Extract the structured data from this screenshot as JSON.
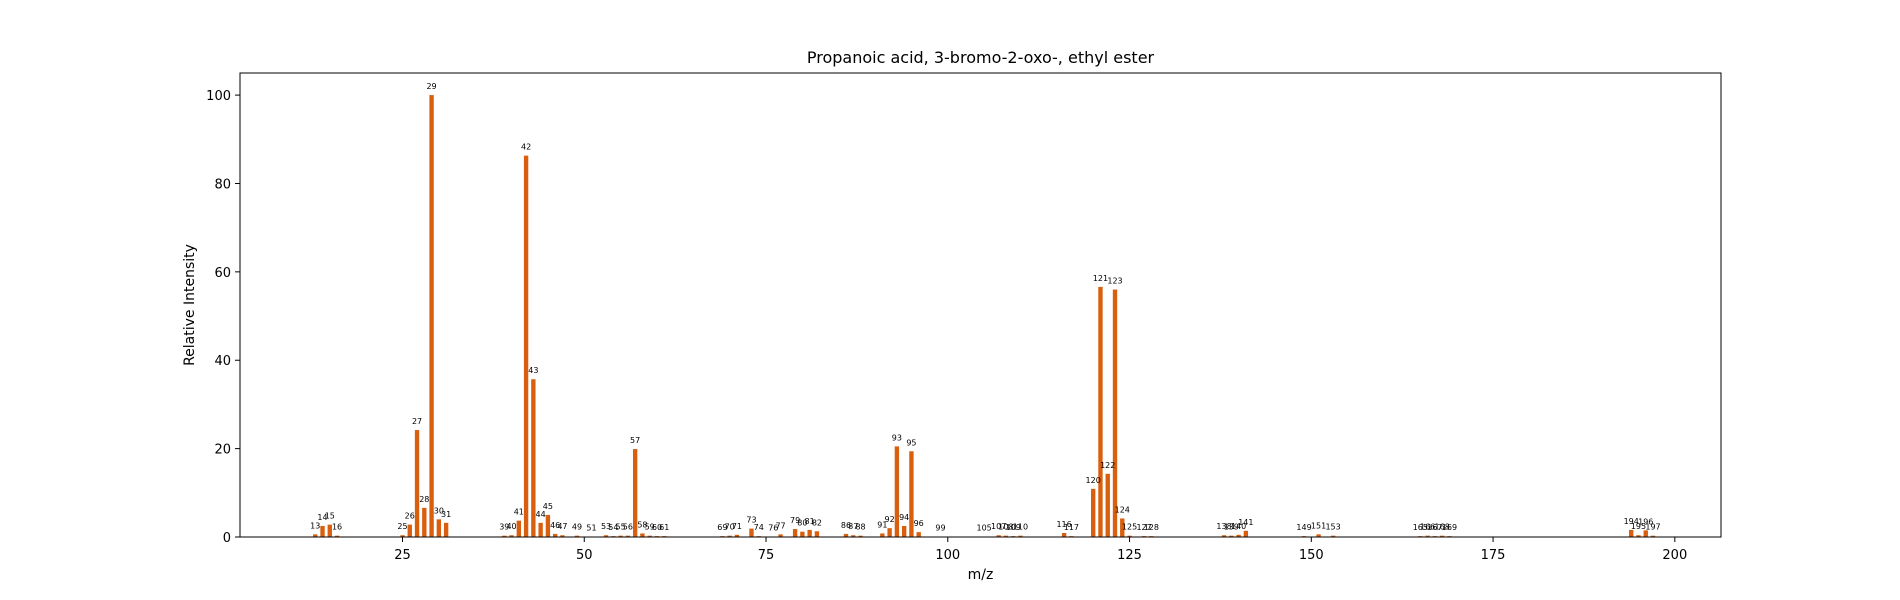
{
  "chart_data": {
    "type": "bar",
    "title": "Propanoic acid, 3-bromo-2-oxo-, ethyl ester",
    "xlabel": "m/z",
    "ylabel": "Relative Intensity",
    "xlim": [
      2.65,
      206.35
    ],
    "ylim": [
      0,
      105
    ],
    "xticks": [
      25,
      50,
      75,
      100,
      125,
      150,
      175,
      200
    ],
    "yticks": [
      0,
      20,
      40,
      60,
      80,
      100
    ],
    "grid": false,
    "bar_color": "#d95f0e",
    "points": [
      {
        "x": 13,
        "y": 0.6
      },
      {
        "x": 14,
        "y": 2.5
      },
      {
        "x": 15,
        "y": 2.8
      },
      {
        "x": 16,
        "y": 0.3
      },
      {
        "x": 25,
        "y": 0.4
      },
      {
        "x": 26,
        "y": 2.8
      },
      {
        "x": 27,
        "y": 24.2
      },
      {
        "x": 28,
        "y": 6.6
      },
      {
        "x": 29,
        "y": 100.0
      },
      {
        "x": 30,
        "y": 4.0
      },
      {
        "x": 31,
        "y": 3.2
      },
      {
        "x": 39,
        "y": 0.3
      },
      {
        "x": 40,
        "y": 0.4
      },
      {
        "x": 41,
        "y": 3.7
      },
      {
        "x": 42,
        "y": 86.3
      },
      {
        "x": 43,
        "y": 35.7
      },
      {
        "x": 44,
        "y": 3.2
      },
      {
        "x": 45,
        "y": 5.0
      },
      {
        "x": 46,
        "y": 0.7
      },
      {
        "x": 47,
        "y": 0.4
      },
      {
        "x": 49,
        "y": 0.3
      },
      {
        "x": 51,
        "y": 0.1
      },
      {
        "x": 53,
        "y": 0.4
      },
      {
        "x": 54,
        "y": 0.2
      },
      {
        "x": 55,
        "y": 0.3
      },
      {
        "x": 56,
        "y": 0.3
      },
      {
        "x": 57,
        "y": 19.9
      },
      {
        "x": 58,
        "y": 0.8
      },
      {
        "x": 59,
        "y": 0.3
      },
      {
        "x": 60,
        "y": 0.2
      },
      {
        "x": 61,
        "y": 0.2
      },
      {
        "x": 69,
        "y": 0.2
      },
      {
        "x": 70,
        "y": 0.3
      },
      {
        "x": 71,
        "y": 0.5
      },
      {
        "x": 73,
        "y": 1.9
      },
      {
        "x": 74,
        "y": 0.2
      },
      {
        "x": 76,
        "y": 0.1
      },
      {
        "x": 77,
        "y": 0.6
      },
      {
        "x": 79,
        "y": 1.8
      },
      {
        "x": 80,
        "y": 1.2
      },
      {
        "x": 81,
        "y": 1.6
      },
      {
        "x": 82,
        "y": 1.3
      },
      {
        "x": 86,
        "y": 0.7
      },
      {
        "x": 87,
        "y": 0.4
      },
      {
        "x": 88,
        "y": 0.3
      },
      {
        "x": 91,
        "y": 0.8
      },
      {
        "x": 92,
        "y": 2.0
      },
      {
        "x": 93,
        "y": 20.5
      },
      {
        "x": 94,
        "y": 2.5
      },
      {
        "x": 95,
        "y": 19.4
      },
      {
        "x": 96,
        "y": 1.1
      },
      {
        "x": 99,
        "y": 0.1
      },
      {
        "x": 105,
        "y": 0.1
      },
      {
        "x": 107,
        "y": 0.4
      },
      {
        "x": 108,
        "y": 0.3
      },
      {
        "x": 109,
        "y": 0.2
      },
      {
        "x": 110,
        "y": 0.3
      },
      {
        "x": 116,
        "y": 0.9
      },
      {
        "x": 117,
        "y": 0.2
      },
      {
        "x": 120,
        "y": 10.9
      },
      {
        "x": 121,
        "y": 56.6
      },
      {
        "x": 122,
        "y": 14.3
      },
      {
        "x": 123,
        "y": 56.0
      },
      {
        "x": 124,
        "y": 4.2
      },
      {
        "x": 125,
        "y": 0.3
      },
      {
        "x": 127,
        "y": 0.2
      },
      {
        "x": 128,
        "y": 0.2
      },
      {
        "x": 138,
        "y": 0.4
      },
      {
        "x": 139,
        "y": 0.3
      },
      {
        "x": 140,
        "y": 0.5
      },
      {
        "x": 141,
        "y": 1.4
      },
      {
        "x": 149,
        "y": 0.2
      },
      {
        "x": 151,
        "y": 0.6
      },
      {
        "x": 153,
        "y": 0.3
      },
      {
        "x": 165,
        "y": 0.2
      },
      {
        "x": 166,
        "y": 0.3
      },
      {
        "x": 167,
        "y": 0.2
      },
      {
        "x": 168,
        "y": 0.3
      },
      {
        "x": 169,
        "y": 0.2
      },
      {
        "x": 194,
        "y": 1.6
      },
      {
        "x": 195,
        "y": 0.4
      },
      {
        "x": 196,
        "y": 1.5
      },
      {
        "x": 197,
        "y": 0.3
      }
    ]
  }
}
